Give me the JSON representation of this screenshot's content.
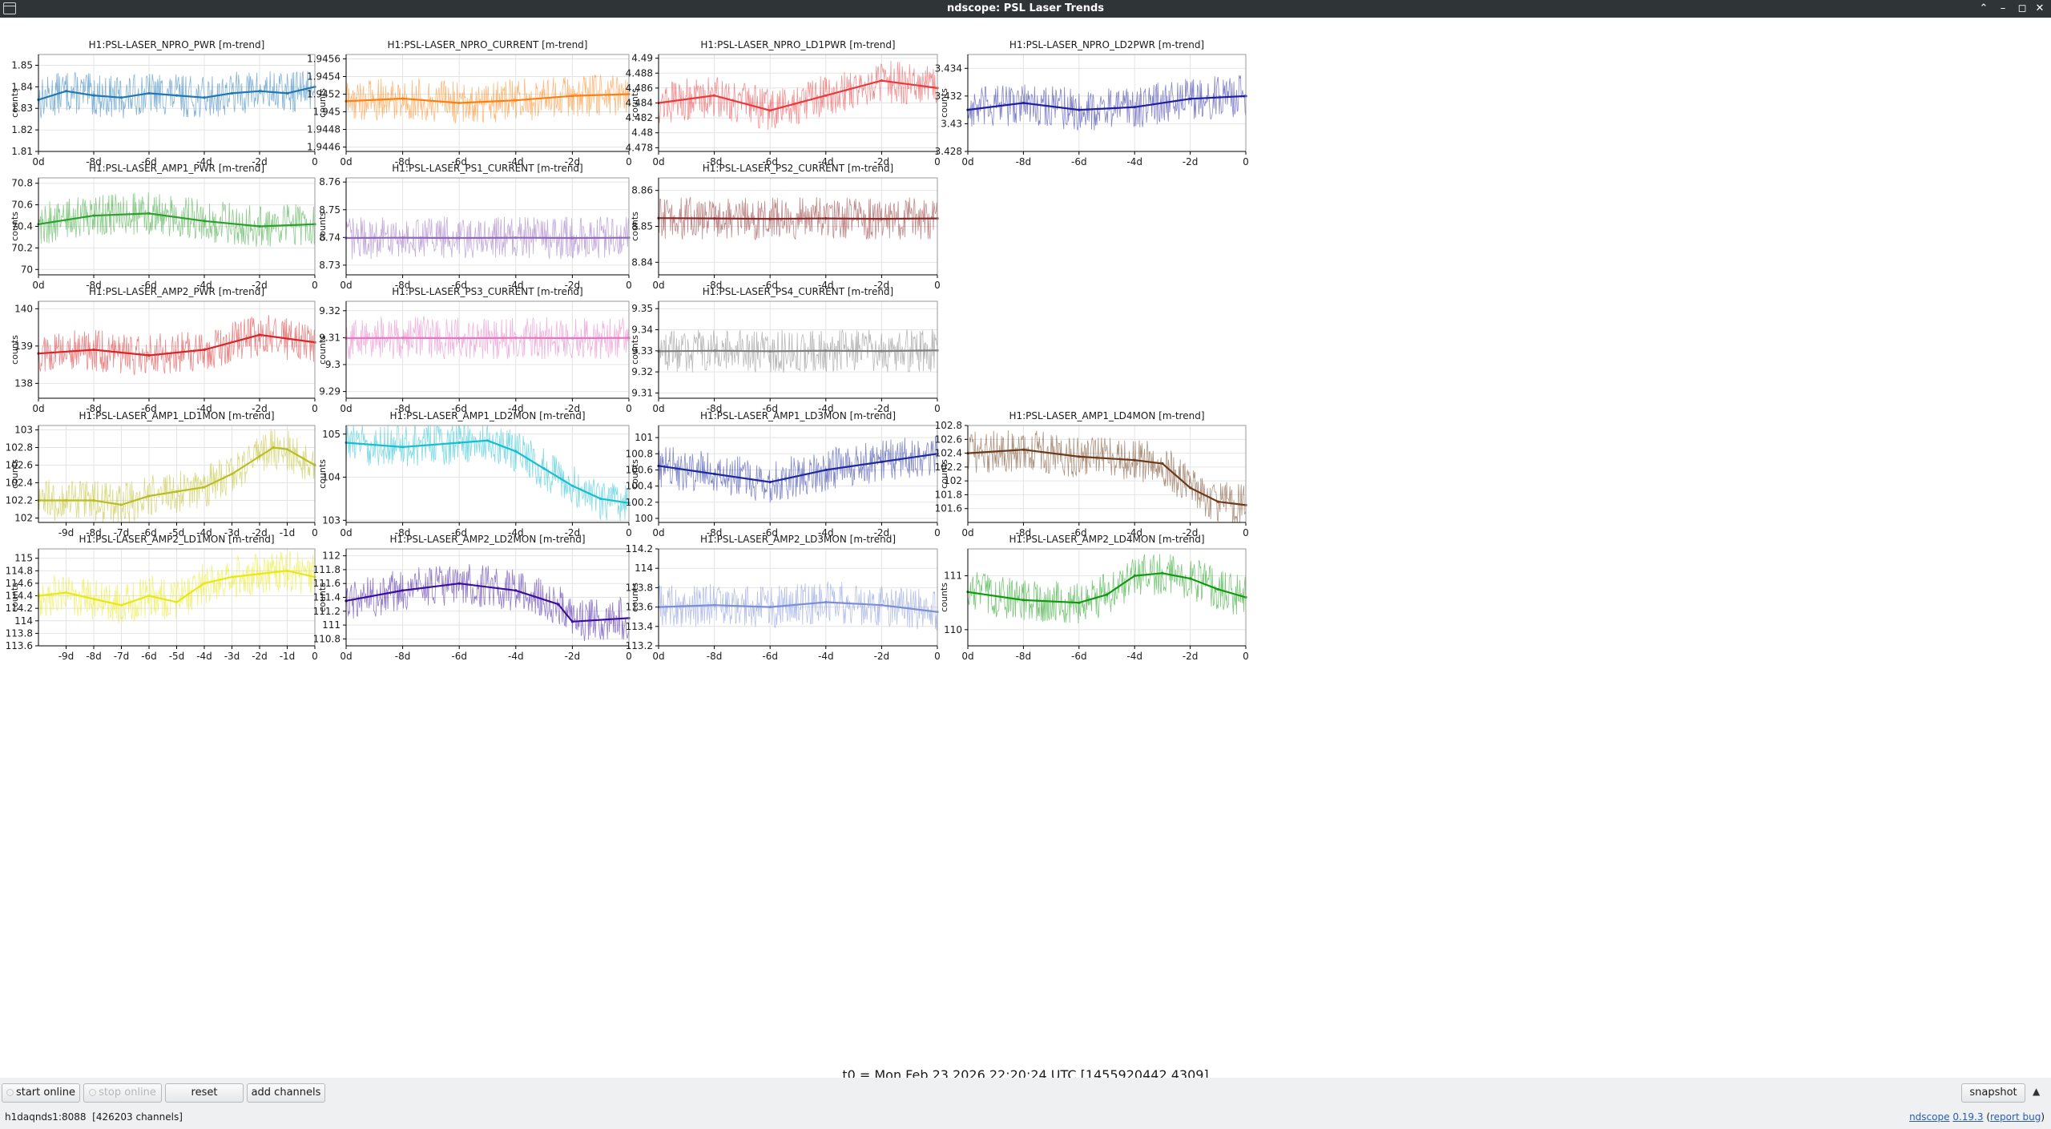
{
  "window": {
    "title": "ndscope: PSL Laser Trends",
    "buttons": {
      "minimize": "⌃",
      "restore": "–",
      "maximize": "◻",
      "close": "✕"
    }
  },
  "colors": {
    "grid": "#e4e4e4",
    "frame": "#000000",
    "text": "#1b1b1b"
  },
  "axis_label": "counts",
  "t0_label": "t0 = Mon Feb 23 2026 22:20:24 UTC [1455920442.4309]",
  "chart_data": [
    {
      "type": "line",
      "title": "H1:PSL-LASER_NPRO_PWR [m-trend]",
      "ylabel": "counts",
      "color": "#1f77b4",
      "ylim": [
        1.81,
        1.855
      ],
      "yticks": [
        1.81,
        1.82,
        1.83,
        1.84,
        1.85
      ],
      "xlim": [
        -10,
        0
      ],
      "xticks": [
        -10,
        -8,
        -6,
        -4,
        -2,
        0
      ],
      "xticklabels": [
        "0d",
        "-8d",
        "-6d",
        "-4d",
        "-2d",
        "0"
      ],
      "series": [
        {
          "x": [
            -10,
            -9,
            -8,
            -7,
            -6,
            -5,
            -4,
            -3,
            -2,
            -1,
            0
          ],
          "y": [
            1.834,
            1.838,
            1.836,
            1.835,
            1.837,
            1.836,
            1.835,
            1.837,
            1.838,
            1.837,
            1.84
          ]
        }
      ]
    },
    {
      "type": "line",
      "title": "H1:PSL-LASER_NPRO_CURRENT [m-trend]",
      "ylabel": "counts",
      "color": "#ff7f0e",
      "ylim": [
        1.94455,
        1.94565
      ],
      "yticks": [
        1.9446,
        1.9448,
        1.945,
        1.9452,
        1.9454,
        1.9456
      ],
      "xlim": [
        -10,
        0
      ],
      "xticks": [
        -10,
        -8,
        -6,
        -4,
        -2,
        0
      ],
      "xticklabels": [
        "0d",
        "-8d",
        "-6d",
        "-4d",
        "-2d",
        "0"
      ],
      "series": [
        {
          "x": [
            -10,
            -8,
            -6,
            -4,
            -2,
            0
          ],
          "y": [
            1.94512,
            1.94515,
            1.9451,
            1.94513,
            1.94518,
            1.9452
          ]
        }
      ]
    },
    {
      "type": "line",
      "title": "H1:PSL-LASER_NPRO_LD1PWR [m-trend]",
      "ylabel": "counts",
      "color": "#e8393c",
      "ylim": [
        4.4775,
        4.4905
      ],
      "yticks": [
        4.478,
        4.48,
        4.482,
        4.484,
        4.486,
        4.488,
        4.49
      ],
      "xlim": [
        -10,
        0
      ],
      "xticks": [
        -10,
        -8,
        -6,
        -4,
        -2,
        0
      ],
      "xticklabels": [
        "0d",
        "-8d",
        "-6d",
        "-4d",
        "-2d",
        "0"
      ],
      "series": [
        {
          "x": [
            -10,
            -8,
            -6,
            -4,
            -2,
            0
          ],
          "y": [
            4.484,
            4.485,
            4.483,
            4.485,
            4.487,
            4.486
          ]
        }
      ]
    },
    {
      "type": "line",
      "title": "H1:PSL-LASER_NPRO_LD2PWR [m-trend]",
      "ylabel": "counts",
      "color": "#1f1fa0",
      "ylim": [
        3.428,
        3.435
      ],
      "yticks": [
        3.428,
        3.43,
        3.432,
        3.434
      ],
      "xlim": [
        -10,
        0
      ],
      "xticks": [
        -10,
        -8,
        -6,
        -4,
        -2,
        0
      ],
      "xticklabels": [
        "0d",
        "-8d",
        "-6d",
        "-4d",
        "-2d",
        "0"
      ],
      "series": [
        {
          "x": [
            -10,
            -8,
            -6,
            -4,
            -2,
            0
          ],
          "y": [
            3.431,
            3.4315,
            3.431,
            3.4312,
            3.4318,
            3.432
          ]
        }
      ]
    },
    {
      "type": "line",
      "title": "H1:PSL-LASER_AMP1_PWR [m-trend]",
      "ylabel": "counts",
      "color": "#2ca02c",
      "ylim": [
        69.95,
        70.85
      ],
      "yticks": [
        70,
        70.2,
        70.4,
        70.6,
        70.8
      ],
      "xlim": [
        -10,
        0
      ],
      "xticks": [
        -10,
        -8,
        -6,
        -4,
        -2,
        0
      ],
      "xticklabels": [
        "0d",
        "-8d",
        "-6d",
        "-4d",
        "-2d",
        "0"
      ],
      "series": [
        {
          "x": [
            -10,
            -8,
            -6,
            -4,
            -2,
            0
          ],
          "y": [
            70.42,
            70.5,
            70.52,
            70.45,
            70.4,
            70.42
          ]
        }
      ]
    },
    {
      "type": "line",
      "title": "H1:PSL-LASER_PS1_CURRENT [m-trend]",
      "ylabel": "counts",
      "color": "#9467bd",
      "ylim": [
        8.7265,
        8.7615
      ],
      "yticks": [
        8.73,
        8.74,
        8.75,
        8.76
      ],
      "xlim": [
        -10,
        0
      ],
      "xticks": [
        -10,
        -8,
        -6,
        -4,
        -2,
        0
      ],
      "xticklabels": [
        "0d",
        "-8d",
        "-6d",
        "-4d",
        "-2d",
        "0"
      ],
      "series": [
        {
          "x": [
            -10,
            -8,
            -6,
            -4,
            -2,
            0
          ],
          "y": [
            8.7398,
            8.7399,
            8.7398,
            8.7399,
            8.7398,
            8.7399
          ]
        }
      ]
    },
    {
      "type": "line",
      "title": "H1:PSL-LASER_PS2_CURRENT [m-trend]",
      "ylabel": "counts",
      "color": "#8c2a2a",
      "ylim": [
        8.8365,
        8.8635
      ],
      "yticks": [
        8.84,
        8.85,
        8.86
      ],
      "xlim": [
        -10,
        0
      ],
      "xticks": [
        -10,
        -8,
        -6,
        -4,
        -2,
        0
      ],
      "xticklabels": [
        "0d",
        "-8d",
        "-6d",
        "-4d",
        "-2d",
        "0"
      ],
      "series": [
        {
          "x": [
            -10,
            -8,
            -6,
            -4,
            -2,
            0
          ],
          "y": [
            8.8523,
            8.8522,
            8.8521,
            8.8522,
            8.8521,
            8.8522
          ]
        }
      ]
    },
    {
      "type": "line",
      "title": "H1:PSL-LASER_AMP2_PWR [m-trend]",
      "ylabel": "counts",
      "color": "#d62728",
      "ylim": [
        137.6,
        140.2
      ],
      "yticks": [
        138,
        139,
        140
      ],
      "xlim": [
        -10,
        0
      ],
      "xticks": [
        -10,
        -8,
        -6,
        -4,
        -2,
        0
      ],
      "xticklabels": [
        "0d",
        "-8d",
        "-6d",
        "-4d",
        "-2d",
        "0"
      ],
      "series": [
        {
          "x": [
            -10,
            -8,
            -6,
            -4,
            -2,
            0
          ],
          "y": [
            138.8,
            138.9,
            138.75,
            138.9,
            139.3,
            139.1
          ]
        }
      ]
    },
    {
      "type": "line",
      "title": "H1:PSL-LASER_PS3_CURRENT [m-trend]",
      "ylabel": "counts",
      "color": "#e377c2",
      "ylim": [
        9.2875,
        9.3235
      ],
      "yticks": [
        9.29,
        9.3,
        9.31,
        9.32
      ],
      "xlim": [
        -10,
        0
      ],
      "xticks": [
        -10,
        -8,
        -6,
        -4,
        -2,
        0
      ],
      "xticklabels": [
        "0d",
        "-8d",
        "-6d",
        "-4d",
        "-2d",
        "0"
      ],
      "series": [
        {
          "x": [
            -10,
            -8,
            -6,
            -4,
            -2,
            0
          ],
          "y": [
            9.3098,
            9.3099,
            9.3098,
            9.3099,
            9.3098,
            9.3099
          ]
        }
      ]
    },
    {
      "type": "line",
      "title": "H1:PSL-LASER_PS4_CURRENT [m-trend]",
      "ylabel": "counts",
      "color": "#7f7f7f",
      "ylim": [
        9.3075,
        9.3535
      ],
      "yticks": [
        9.31,
        9.32,
        9.33,
        9.34,
        9.35
      ],
      "xlim": [
        -10,
        0
      ],
      "xticks": [
        -10,
        -8,
        -6,
        -4,
        -2,
        0
      ],
      "xticklabels": [
        "0d",
        "-8d",
        "-6d",
        "-4d",
        "-2d",
        "0"
      ],
      "series": [
        {
          "x": [
            -10,
            -8,
            -6,
            -4,
            -2,
            0
          ],
          "y": [
            9.3298,
            9.33,
            9.3298,
            9.33,
            9.3299,
            9.3302
          ]
        }
      ]
    },
    {
      "type": "line",
      "title": "H1:PSL-LASER_AMP1_LD1MON [m-trend]",
      "ylabel": "counts",
      "color": "#bcbd22",
      "ylim": [
        101.95,
        103.05
      ],
      "yticks": [
        102,
        102.2,
        102.4,
        102.6,
        102.8,
        103
      ],
      "xlim": [
        -10,
        0
      ],
      "xticks": [
        -9,
        -8,
        -7,
        -6,
        -5,
        -4,
        -3,
        -2,
        -1,
        0
      ],
      "xticklabels": [
        "-9d",
        "-8d",
        "-7d",
        "-6d",
        "-5d",
        "-4d",
        "-3d",
        "-2d",
        "-1d",
        "0"
      ],
      "series": [
        {
          "x": [
            -10,
            -9,
            -8,
            -7,
            -6,
            -5,
            -4,
            -3,
            -2,
            -1.5,
            -1,
            0
          ],
          "y": [
            102.2,
            102.2,
            102.2,
            102.15,
            102.25,
            102.3,
            102.35,
            102.5,
            102.7,
            102.8,
            102.78,
            102.6
          ]
        }
      ]
    },
    {
      "type": "line",
      "title": "H1:PSL-LASER_AMP1_LD2MON [m-trend]",
      "ylabel": "counts",
      "color": "#17becf",
      "ylim": [
        102.95,
        105.2
      ],
      "yticks": [
        103,
        104,
        105
      ],
      "xlim": [
        -10,
        0
      ],
      "xticks": [
        -10,
        -8,
        -6,
        -4,
        -2,
        0
      ],
      "xticklabels": [
        "0d",
        "-8d",
        "-6d",
        "-4d",
        "-2d",
        "0"
      ],
      "series": [
        {
          "x": [
            -10,
            -8,
            -6,
            -5,
            -4,
            -3,
            -2,
            -1,
            0
          ],
          "y": [
            104.8,
            104.7,
            104.8,
            104.85,
            104.6,
            104.2,
            103.8,
            103.5,
            103.4
          ]
        }
      ]
    },
    {
      "type": "line",
      "title": "H1:PSL-LASER_AMP1_LD3MON [m-trend]",
      "ylabel": "counts",
      "color": "#1f2a9e",
      "ylim": [
        99.95,
        101.15
      ],
      "yticks": [
        100,
        100.2,
        100.4,
        100.6,
        100.8,
        101
      ],
      "xlim": [
        -10,
        0
      ],
      "xticks": [
        -10,
        -8,
        -6,
        -4,
        -2,
        0
      ],
      "xticklabels": [
        "0d",
        "-8d",
        "-6d",
        "-4d",
        "-2d",
        "0"
      ],
      "series": [
        {
          "x": [
            -10,
            -8,
            -6,
            -4,
            -2,
            0
          ],
          "y": [
            100.65,
            100.55,
            100.45,
            100.6,
            100.7,
            100.8
          ]
        }
      ]
    },
    {
      "type": "line",
      "title": "H1:PSL-LASER_AMP1_LD4MON [m-trend]",
      "ylabel": "counts",
      "color": "#6b3a1a",
      "ylim": [
        101.4,
        102.8
      ],
      "yticks": [
        101.6,
        101.8,
        102,
        102.2,
        102.4,
        102.6,
        102.8
      ],
      "xlim": [
        -10,
        0
      ],
      "xticks": [
        -10,
        -8,
        -6,
        -4,
        -2,
        0
      ],
      "xticklabels": [
        "0d",
        "-8d",
        "-6d",
        "-4d",
        "-2d",
        "0"
      ],
      "series": [
        {
          "x": [
            -10,
            -8,
            -6,
            -4,
            -3,
            -2,
            -1,
            0
          ],
          "y": [
            102.4,
            102.45,
            102.35,
            102.3,
            102.25,
            101.9,
            101.7,
            101.65
          ]
        }
      ]
    },
    {
      "type": "line",
      "title": "H1:PSL-LASER_AMP2_LD1MON [m-trend]",
      "ylabel": "counts",
      "color": "#e8e812",
      "ylim": [
        113.6,
        115.15
      ],
      "yticks": [
        113.6,
        113.8,
        114,
        114.2,
        114.4,
        114.6,
        114.8,
        115
      ],
      "xlim": [
        -10,
        0
      ],
      "xticks": [
        -9,
        -8,
        -7,
        -6,
        -5,
        -4,
        -3,
        -2,
        -1,
        0
      ],
      "xticklabels": [
        "-9d",
        "-8d",
        "-7d",
        "-6d",
        "-5d",
        "-4d",
        "-3d",
        "-2d",
        "-1d",
        "0"
      ],
      "series": [
        {
          "x": [
            -10,
            -9,
            -8,
            -7,
            -6,
            -5,
            -4,
            -3,
            -2,
            -1,
            0
          ],
          "y": [
            114.4,
            114.45,
            114.35,
            114.25,
            114.4,
            114.3,
            114.6,
            114.7,
            114.75,
            114.8,
            114.7
          ]
        }
      ]
    },
    {
      "type": "line",
      "title": "H1:PSL-LASER_AMP2_LD2MON [m-trend]",
      "ylabel": "counts",
      "color": "#3a0f9c",
      "ylim": [
        110.7,
        112.1
      ],
      "yticks": [
        110.8,
        111,
        111.2,
        111.4,
        111.6,
        111.8,
        112
      ],
      "xlim": [
        -10,
        0
      ],
      "xticks": [
        -10,
        -8,
        -6,
        -4,
        -2,
        0
      ],
      "xticklabels": [
        "0d",
        "-8d",
        "-6d",
        "-4d",
        "-2d",
        "0"
      ],
      "series": [
        {
          "x": [
            -10,
            -8,
            -6,
            -4,
            -2.5,
            -2,
            0
          ],
          "y": [
            111.35,
            111.5,
            111.6,
            111.5,
            111.3,
            111.05,
            111.1
          ]
        }
      ]
    },
    {
      "type": "line",
      "title": "H1:PSL-LASER_AMP2_LD3MON [m-trend]",
      "ylabel": "counts",
      "color": "#7b8fd8",
      "ylim": [
        113.2,
        114.2
      ],
      "yticks": [
        113.2,
        113.4,
        113.6,
        113.8,
        114,
        114.2
      ],
      "xlim": [
        -10,
        0
      ],
      "xticks": [
        -10,
        -8,
        -6,
        -4,
        -2,
        0
      ],
      "xticklabels": [
        "0d",
        "-8d",
        "-6d",
        "-4d",
        "-2d",
        "0"
      ],
      "series": [
        {
          "x": [
            -10,
            -8,
            -6,
            -4,
            -2,
            0
          ],
          "y": [
            113.6,
            113.62,
            113.6,
            113.65,
            113.62,
            113.55
          ]
        }
      ]
    },
    {
      "type": "line",
      "title": "H1:PSL-LASER_AMP2_LD4MON [m-trend]",
      "ylabel": "counts",
      "color": "#0f9a0f",
      "ylim": [
        109.7,
        111.5
      ],
      "yticks": [
        110,
        111
      ],
      "xlim": [
        -10,
        0
      ],
      "xticks": [
        -10,
        -8,
        -6,
        -4,
        -2,
        0
      ],
      "xticklabels": [
        "0d",
        "-8d",
        "-6d",
        "-4d",
        "-2d",
        "0"
      ],
      "series": [
        {
          "x": [
            -10,
            -8,
            -6,
            -5,
            -4,
            -3,
            -2,
            -1,
            0
          ],
          "y": [
            110.7,
            110.55,
            110.5,
            110.65,
            111,
            111.05,
            110.95,
            110.75,
            110.6
          ]
        }
      ]
    }
  ],
  "buttons": {
    "start_online": "start online",
    "stop_online": "stop online",
    "reset": "reset",
    "add_channels": "add channels",
    "snapshot": "snapshot"
  },
  "status": {
    "server": "h1daqnds1:8088",
    "channels": "[426203 channels]",
    "app_link": "ndscope",
    "version_link": "0.19.3",
    "report_bug": "report bug"
  }
}
